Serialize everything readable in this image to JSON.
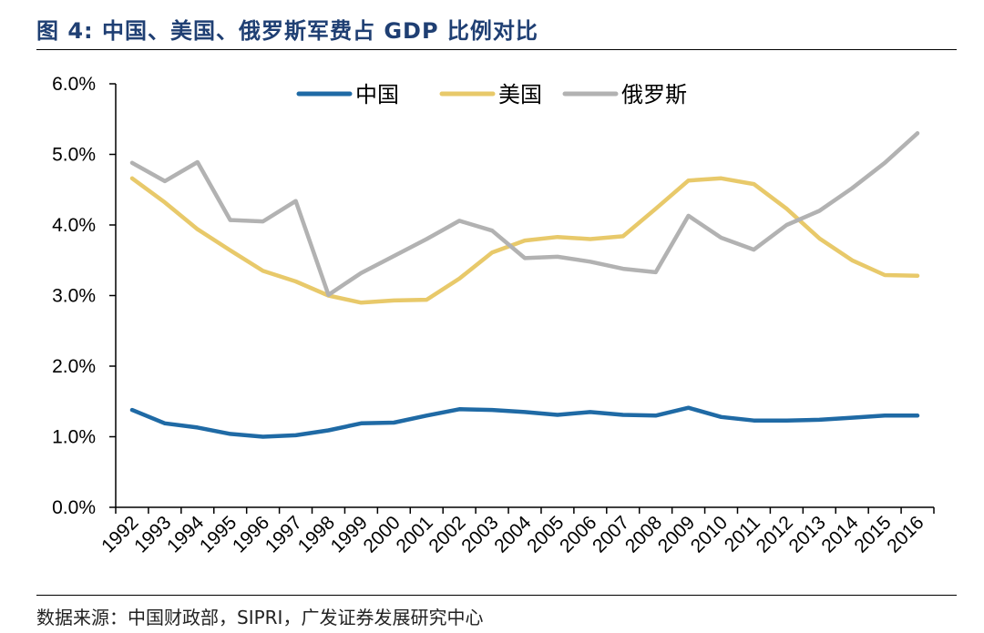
{
  "header": {
    "title": "图 4:  中国、美国、俄罗斯军费占 GDP 比例对比"
  },
  "footer": {
    "source": "数据来源：中国财政部，SIPRI，广发证券发展研究中心"
  },
  "chart_data": {
    "type": "line",
    "title": "中国、美国、俄罗斯军费占 GDP 比例对比",
    "xlabel": "",
    "ylabel": "",
    "ylim": [
      0,
      6
    ],
    "y_ticks": [
      "0.0%",
      "1.0%",
      "2.0%",
      "3.0%",
      "4.0%",
      "5.0%",
      "6.0%"
    ],
    "categories": [
      "1992",
      "1993",
      "1994",
      "1995",
      "1996",
      "1997",
      "1998",
      "1999",
      "2000",
      "2001",
      "2002",
      "2003",
      "2004",
      "2005",
      "2006",
      "2007",
      "2008",
      "2009",
      "2010",
      "2011",
      "2012",
      "2013",
      "2014",
      "2015",
      "2016"
    ],
    "legend_position": "top-center",
    "grid": false,
    "series": [
      {
        "name": "中国",
        "color": "#1f6aa5",
        "values": [
          1.38,
          1.19,
          1.13,
          1.04,
          1.0,
          1.02,
          1.09,
          1.19,
          1.2,
          1.3,
          1.39,
          1.38,
          1.35,
          1.31,
          1.35,
          1.31,
          1.3,
          1.41,
          1.28,
          1.23,
          1.23,
          1.24,
          1.27,
          1.3,
          1.3
        ]
      },
      {
        "name": "美国",
        "color": "#e8c96a",
        "values": [
          4.66,
          4.32,
          3.94,
          3.64,
          3.35,
          3.2,
          3.0,
          2.9,
          2.93,
          2.94,
          3.24,
          3.61,
          3.78,
          3.83,
          3.8,
          3.84,
          4.23,
          4.63,
          4.66,
          4.58,
          4.23,
          3.81,
          3.5,
          3.29,
          3.28
        ]
      },
      {
        "name": "俄罗斯",
        "color": "#b2b2b2",
        "values": [
          4.88,
          4.62,
          4.89,
          4.07,
          4.05,
          4.34,
          3.01,
          3.32,
          3.56,
          3.8,
          4.06,
          3.92,
          3.53,
          3.55,
          3.48,
          3.38,
          3.33,
          4.13,
          3.82,
          3.65,
          4.0,
          4.2,
          4.52,
          4.88,
          5.3
        ]
      }
    ]
  }
}
